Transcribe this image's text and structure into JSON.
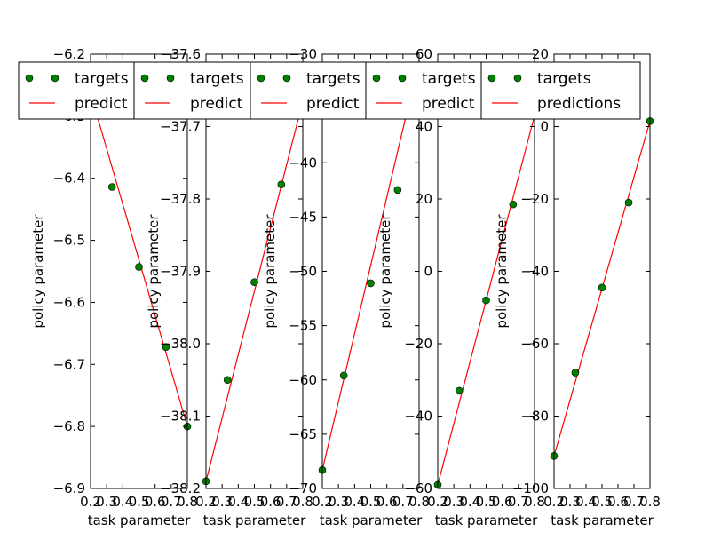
{
  "figure": {
    "background": "#ffffff",
    "axes_color": "#000000"
  },
  "legend": {
    "entries": [
      {
        "label": "targets",
        "kind": "marker",
        "marker_color": "#008000",
        "edge_color": "#000000"
      },
      {
        "label": "predictions",
        "kind": "line",
        "line_color": "#ff0000"
      }
    ],
    "truncated_label": "predict"
  },
  "chart_data": [
    {
      "type": "scatter+line",
      "xlabel": "task parameter",
      "ylabel": "policy parameter",
      "xlim": [
        0.2,
        0.8
      ],
      "ylim": [
        -6.9,
        -6.2
      ],
      "xticks": [
        0.2,
        0.3,
        0.4,
        0.5,
        0.6,
        0.7,
        0.8
      ],
      "xtick_labels": [
        "0.2",
        "0.3",
        "0.4",
        "0.5",
        "0.6",
        "0.7",
        "0.8"
      ],
      "yticks": [
        -6.9,
        -6.8,
        -6.7,
        -6.6,
        -6.5,
        -6.4,
        -6.3,
        -6.2
      ],
      "ytick_labels": [
        "−6.9",
        "−6.8",
        "−6.7",
        "−6.6",
        "−6.5",
        "−6.4",
        "−6.3",
        "−6.2"
      ],
      "series": [
        {
          "name": "targets",
          "x": [
            0.333,
            0.5,
            0.667,
            0.8
          ],
          "y": [
            -6.414,
            -6.543,
            -6.672,
            -6.8
          ]
        },
        {
          "name": "predictions",
          "x": [
            0.2,
            0.8
          ],
          "y": [
            -6.263,
            -6.8
          ]
        }
      ]
    },
    {
      "type": "scatter+line",
      "xlabel": "task parameter",
      "ylabel": "policy parameter",
      "xlim": [
        0.2,
        0.8
      ],
      "ylim": [
        -38.2,
        -37.6
      ],
      "xticks": [
        0.2,
        0.3,
        0.4,
        0.5,
        0.6,
        0.7,
        0.8
      ],
      "xtick_labels": [
        "0.2",
        "0.3",
        "0.4",
        "0.5",
        "0.6",
        "0.7",
        "0.8"
      ],
      "yticks": [
        -38.2,
        -38.1,
        -38.0,
        -37.9,
        -37.8,
        -37.7,
        -37.6
      ],
      "ytick_labels": [
        "−38.2",
        "−38.1",
        "−38.0",
        "−37.9",
        "−37.8",
        "−37.7",
        "−37.6"
      ],
      "series": [
        {
          "name": "targets",
          "x": [
            0.2,
            0.333,
            0.5,
            0.667
          ],
          "y": [
            -38.19,
            -38.05,
            -37.915,
            -37.78
          ]
        },
        {
          "name": "predictions",
          "x": [
            0.2,
            0.8
          ],
          "y": [
            -38.19,
            -37.665
          ]
        }
      ]
    },
    {
      "type": "scatter+line",
      "xlabel": "task parameter",
      "ylabel": "policy parameter",
      "xlim": [
        0.2,
        0.8
      ],
      "ylim": [
        -70,
        -30
      ],
      "xticks": [
        0.2,
        0.3,
        0.4,
        0.5,
        0.6,
        0.7,
        0.8
      ],
      "xtick_labels": [
        "0.2",
        "0.3",
        "0.4",
        "0.5",
        "0.6",
        "0.7",
        "0.8"
      ],
      "yticks": [
        -70,
        -65,
        -60,
        -55,
        -50,
        -45,
        -40,
        -35,
        -30
      ],
      "ytick_labels": [
        "−70",
        "−65",
        "−60",
        "−55",
        "−50",
        "−45",
        "−40",
        "−35",
        "−30"
      ],
      "series": [
        {
          "name": "targets",
          "x": [
            0.2,
            0.333,
            0.5,
            0.667
          ],
          "y": [
            -68.3,
            -59.6,
            -51.1,
            -42.5
          ]
        },
        {
          "name": "predictions",
          "x": [
            0.2,
            0.8
          ],
          "y": [
            -68.3,
            -30.6
          ]
        }
      ]
    },
    {
      "type": "scatter+line",
      "xlabel": "task parameter",
      "ylabel": "policy parameter",
      "xlim": [
        0.2,
        0.8
      ],
      "ylim": [
        -60,
        60
      ],
      "xticks": [
        0.2,
        0.3,
        0.4,
        0.5,
        0.6,
        0.7,
        0.8
      ],
      "xtick_labels": [
        "0.2",
        "0.3",
        "0.4",
        "0.5",
        "0.6",
        "0.7",
        "0.8"
      ],
      "yticks": [
        -60,
        -40,
        -20,
        0,
        20,
        40,
        60
      ],
      "ytick_labels": [
        "−60",
        "−40",
        "−20",
        "0",
        "20",
        "40",
        "60"
      ],
      "series": [
        {
          "name": "targets",
          "x": [
            0.2,
            0.333,
            0.5,
            0.667
          ],
          "y": [
            -59,
            -33,
            -8,
            18.5
          ]
        },
        {
          "name": "predictions",
          "x": [
            0.2,
            0.8
          ],
          "y": [
            -59,
            43
          ]
        }
      ]
    },
    {
      "type": "scatter+line",
      "xlabel": "task parameter",
      "ylabel": "policy parameter",
      "xlim": [
        0.2,
        0.8
      ],
      "ylim": [
        -100,
        20
      ],
      "xticks": [
        0.2,
        0.3,
        0.4,
        0.5,
        0.6,
        0.7,
        0.8
      ],
      "xtick_labels": [
        "0.2",
        "0.3",
        "0.4",
        "0.5",
        "0.6",
        "0.7",
        "0.8"
      ],
      "yticks": [
        -100,
        -80,
        -60,
        -40,
        -20,
        0,
        20
      ],
      "ytick_labels": [
        "−100",
        "−80",
        "−60",
        "−40",
        "−20",
        "0",
        "20"
      ],
      "series": [
        {
          "name": "targets",
          "x": [
            0.2,
            0.333,
            0.5,
            0.667,
            0.8
          ],
          "y": [
            -91,
            -68,
            -44.5,
            -21,
            1.5
          ]
        },
        {
          "name": "predictions",
          "x": [
            0.2,
            0.8
          ],
          "y": [
            -91,
            1.5
          ]
        }
      ]
    }
  ]
}
